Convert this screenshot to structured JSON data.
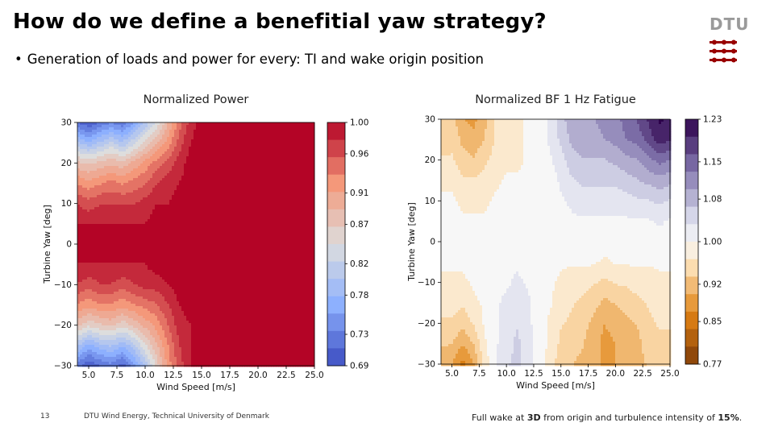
{
  "slide": {
    "title": "How do we define a benefitial yaw strategy?",
    "bullet_marker": "•",
    "bullet": "Generation of loads and power for every:  TI and wake origin position",
    "logo_text": "DTU",
    "page_number": "13",
    "footer_org": "DTU Wind Energy, Technical University of Denmark",
    "footer_note_pre": "Full wake at ",
    "footer_note_b1": "3D",
    "footer_note_mid": " from origin and turbulence intensity of ",
    "footer_note_b2": "15%",
    "footer_note_post": "."
  },
  "colors": {
    "logo_red": "#990000",
    "logo_grey": "#9a9a9a"
  },
  "chart_data": [
    {
      "type": "heatmap",
      "title": "Normalized Power",
      "xlabel": "Wind Speed [m/s]",
      "ylabel": "Turbine Yaw [deg]",
      "xlim": [
        4.0,
        25.0
      ],
      "ylim": [
        -30,
        30
      ],
      "xticks": [
        5.0,
        7.5,
        10.0,
        12.5,
        15.0,
        17.5,
        20.0,
        22.5,
        25.0
      ],
      "xtick_labels": [
        "5.0",
        "7.5",
        "10.0",
        "12.5",
        "15.0",
        "17.5",
        "20.0",
        "22.5",
        "25.0"
      ],
      "yticks": [
        30,
        20,
        10,
        0,
        -10,
        -20,
        -30
      ],
      "ytick_labels": [
        "30",
        "20",
        "10",
        "0",
        "−10",
        "−20",
        "−30"
      ],
      "colormap": "coolwarm",
      "colorbar_range": [
        0.69,
        1.0
      ],
      "colorbar_ticks": [
        1.0,
        0.96,
        0.91,
        0.87,
        0.82,
        0.78,
        0.73,
        0.69
      ],
      "colorbar_labels": [
        "1.00",
        "0.96",
        "0.91",
        "0.87",
        "0.82",
        "0.78",
        "0.73",
        "0.69"
      ],
      "x": [
        4,
        5,
        6,
        7,
        8,
        9,
        10,
        11,
        12,
        13,
        14,
        15,
        16,
        17,
        18,
        19,
        20,
        21,
        22,
        23,
        24,
        25
      ],
      "y": [
        30,
        25,
        20,
        15,
        10,
        5,
        0,
        -5,
        -10,
        -15,
        -20,
        -25,
        -30
      ],
      "z": [
        [
          0.72,
          0.7,
          0.72,
          0.74,
          0.72,
          0.76,
          0.8,
          0.84,
          0.89,
          0.94,
          0.98,
          1.0,
          1.0,
          1.0,
          1.0,
          1.0,
          1.0,
          1.0,
          1.0,
          1.0,
          1.0,
          1.0
        ],
        [
          0.8,
          0.78,
          0.8,
          0.82,
          0.8,
          0.83,
          0.86,
          0.89,
          0.92,
          0.96,
          0.99,
          1.0,
          1.0,
          1.0,
          1.0,
          1.0,
          1.0,
          1.0,
          1.0,
          1.0,
          1.0,
          1.0
        ],
        [
          0.88,
          0.87,
          0.88,
          0.89,
          0.88,
          0.9,
          0.92,
          0.94,
          0.96,
          0.98,
          1.0,
          1.0,
          1.0,
          1.0,
          1.0,
          1.0,
          1.0,
          1.0,
          1.0,
          1.0,
          1.0,
          1.0
        ],
        [
          0.93,
          0.92,
          0.93,
          0.94,
          0.93,
          0.94,
          0.95,
          0.97,
          0.98,
          0.99,
          1.0,
          1.0,
          1.0,
          1.0,
          1.0,
          1.0,
          1.0,
          1.0,
          1.0,
          1.0,
          1.0,
          1.0
        ],
        [
          0.97,
          0.96,
          0.97,
          0.97,
          0.97,
          0.97,
          0.98,
          0.99,
          0.99,
          1.0,
          1.0,
          1.0,
          1.0,
          1.0,
          1.0,
          1.0,
          1.0,
          1.0,
          1.0,
          1.0,
          1.0,
          1.0
        ],
        [
          0.99,
          0.99,
          0.99,
          0.99,
          0.99,
          0.99,
          0.99,
          1.0,
          1.0,
          1.0,
          1.0,
          1.0,
          1.0,
          1.0,
          1.0,
          1.0,
          1.0,
          1.0,
          1.0,
          1.0,
          1.0,
          1.0
        ],
        [
          1.0,
          1.0,
          1.0,
          1.0,
          1.0,
          1.0,
          1.0,
          1.0,
          1.0,
          1.0,
          1.0,
          1.0,
          1.0,
          1.0,
          1.0,
          1.0,
          1.0,
          1.0,
          1.0,
          1.0,
          1.0,
          1.0
        ],
        [
          0.99,
          0.99,
          0.99,
          0.99,
          0.99,
          0.99,
          0.99,
          1.0,
          1.0,
          1.0,
          1.0,
          1.0,
          1.0,
          1.0,
          1.0,
          1.0,
          1.0,
          1.0,
          1.0,
          1.0,
          1.0,
          1.0
        ],
        [
          0.97,
          0.96,
          0.97,
          0.97,
          0.96,
          0.97,
          0.98,
          0.98,
          0.99,
          1.0,
          1.0,
          1.0,
          1.0,
          1.0,
          1.0,
          1.0,
          1.0,
          1.0,
          1.0,
          1.0,
          1.0,
          1.0
        ],
        [
          0.93,
          0.92,
          0.93,
          0.93,
          0.92,
          0.93,
          0.94,
          0.95,
          0.97,
          0.99,
          1.0,
          1.0,
          1.0,
          1.0,
          1.0,
          1.0,
          1.0,
          1.0,
          1.0,
          1.0,
          1.0,
          1.0
        ],
        [
          0.88,
          0.86,
          0.87,
          0.88,
          0.86,
          0.88,
          0.9,
          0.92,
          0.95,
          0.98,
          0.99,
          1.0,
          1.0,
          1.0,
          1.0,
          1.0,
          1.0,
          1.0,
          1.0,
          1.0,
          1.0,
          1.0
        ],
        [
          0.8,
          0.77,
          0.79,
          0.8,
          0.78,
          0.81,
          0.85,
          0.89,
          0.93,
          0.97,
          0.99,
          1.0,
          1.0,
          1.0,
          1.0,
          1.0,
          1.0,
          1.0,
          1.0,
          1.0,
          1.0,
          1.0
        ],
        [
          0.73,
          0.7,
          0.72,
          0.73,
          0.71,
          0.75,
          0.8,
          0.86,
          0.92,
          0.96,
          0.99,
          1.0,
          1.0,
          1.0,
          1.0,
          1.0,
          1.0,
          1.0,
          1.0,
          1.0,
          1.0,
          1.0
        ]
      ]
    },
    {
      "type": "heatmap",
      "title": "Normalized BF 1 Hz Fatigue",
      "xlabel": "Wind Speed [m/s]",
      "ylabel": "Turbine Yaw [deg]",
      "xlim": [
        4.0,
        25.0
      ],
      "ylim": [
        -30,
        30
      ],
      "xticks": [
        5.0,
        7.5,
        10.0,
        12.5,
        15.0,
        17.5,
        20.0,
        22.5,
        25.0
      ],
      "xtick_labels": [
        "5.0",
        "7.5",
        "10.0",
        "12.5",
        "15.0",
        "17.5",
        "20.0",
        "22.5",
        "25.0"
      ],
      "yticks": [
        30,
        20,
        10,
        0,
        -10,
        -20,
        -30
      ],
      "ytick_labels": [
        "30",
        "20",
        "10",
        "0",
        "−10",
        "−20",
        "−30"
      ],
      "colormap": "PuOr",
      "colorbar_range": [
        0.77,
        1.23
      ],
      "colorbar_ticks": [
        1.23,
        1.15,
        1.08,
        1.0,
        0.92,
        0.85,
        0.77
      ],
      "colorbar_labels": [
        "1.23",
        "1.15",
        "1.08",
        "1.00",
        "0.92",
        "0.85",
        "0.77"
      ],
      "x": [
        4,
        5,
        6,
        7,
        8,
        9,
        10,
        11,
        12,
        13,
        14,
        15,
        16,
        17,
        18,
        19,
        20,
        21,
        22,
        23,
        24,
        25
      ],
      "y": [
        30,
        25,
        20,
        15,
        10,
        5,
        0,
        -5,
        -10,
        -15,
        -20,
        -25,
        -30
      ],
      "z": [
        [
          0.93,
          0.94,
          0.9,
          0.89,
          0.92,
          0.96,
          0.97,
          0.98,
          0.99,
          1.0,
          1.02,
          1.06,
          1.09,
          1.1,
          1.1,
          1.11,
          1.12,
          1.14,
          1.16,
          1.19,
          1.22,
          1.21
        ],
        [
          0.94,
          0.95,
          0.92,
          0.91,
          0.93,
          0.96,
          0.97,
          0.98,
          0.99,
          1.0,
          1.02,
          1.05,
          1.08,
          1.09,
          1.09,
          1.1,
          1.11,
          1.13,
          1.14,
          1.17,
          1.2,
          1.19
        ],
        [
          0.96,
          0.96,
          0.94,
          0.93,
          0.95,
          0.97,
          0.98,
          0.98,
          0.99,
          1.0,
          1.01,
          1.03,
          1.06,
          1.07,
          1.07,
          1.07,
          1.08,
          1.09,
          1.1,
          1.12,
          1.14,
          1.13
        ],
        [
          0.98,
          0.98,
          0.96,
          0.96,
          0.97,
          0.98,
          0.99,
          0.99,
          0.99,
          1.0,
          1.0,
          1.02,
          1.04,
          1.05,
          1.05,
          1.05,
          1.05,
          1.06,
          1.07,
          1.08,
          1.09,
          1.08
        ],
        [
          0.99,
          0.99,
          0.98,
          0.98,
          0.98,
          0.99,
          0.99,
          0.99,
          1.0,
          1.0,
          1.0,
          1.01,
          1.02,
          1.03,
          1.03,
          1.03,
          1.03,
          1.03,
          1.04,
          1.04,
          1.05,
          1.04
        ],
        [
          1.0,
          1.0,
          0.99,
          0.99,
          0.99,
          1.0,
          1.0,
          1.0,
          1.0,
          1.0,
          1.0,
          1.0,
          1.01,
          1.01,
          1.01,
          1.01,
          1.01,
          1.01,
          1.01,
          1.01,
          1.02,
          1.01
        ],
        [
          1.0,
          1.0,
          1.0,
          1.0,
          1.0,
          1.0,
          1.0,
          1.0,
          1.0,
          1.0,
          1.0,
          1.0,
          1.0,
          1.0,
          1.0,
          1.0,
          1.0,
          1.0,
          1.0,
          1.0,
          1.0,
          1.0
        ],
        [
          0.99,
          0.99,
          0.99,
          1.0,
          1.0,
          1.01,
          1.01,
          1.01,
          1.0,
          1.0,
          1.0,
          0.99,
          0.99,
          0.99,
          0.99,
          0.98,
          0.99,
          0.99,
          0.99,
          0.99,
          0.99,
          0.99
        ],
        [
          0.98,
          0.98,
          0.98,
          0.99,
          1.0,
          1.01,
          1.01,
          1.02,
          1.01,
          1.0,
          0.99,
          0.98,
          0.97,
          0.97,
          0.96,
          0.95,
          0.96,
          0.96,
          0.97,
          0.97,
          0.98,
          0.98
        ],
        [
          0.97,
          0.97,
          0.96,
          0.98,
          0.99,
          1.01,
          1.02,
          1.03,
          1.02,
          1.0,
          0.99,
          0.97,
          0.96,
          0.95,
          0.94,
          0.92,
          0.93,
          0.94,
          0.95,
          0.96,
          0.97,
          0.97
        ],
        [
          0.95,
          0.95,
          0.94,
          0.96,
          0.99,
          1.01,
          1.03,
          1.04,
          1.02,
          1.0,
          0.98,
          0.96,
          0.95,
          0.94,
          0.92,
          0.9,
          0.91,
          0.92,
          0.93,
          0.95,
          0.96,
          0.96
        ],
        [
          0.93,
          0.93,
          0.9,
          0.93,
          0.98,
          1.01,
          1.03,
          1.05,
          1.03,
          1.0,
          0.98,
          0.95,
          0.94,
          0.93,
          0.91,
          0.89,
          0.9,
          0.91,
          0.92,
          0.94,
          0.95,
          0.95
        ],
        [
          0.91,
          0.9,
          0.86,
          0.9,
          0.97,
          1.01,
          1.04,
          1.05,
          1.03,
          1.0,
          0.97,
          0.94,
          0.93,
          0.92,
          0.91,
          0.89,
          0.9,
          0.91,
          0.92,
          0.93,
          0.94,
          0.94
        ]
      ]
    }
  ]
}
